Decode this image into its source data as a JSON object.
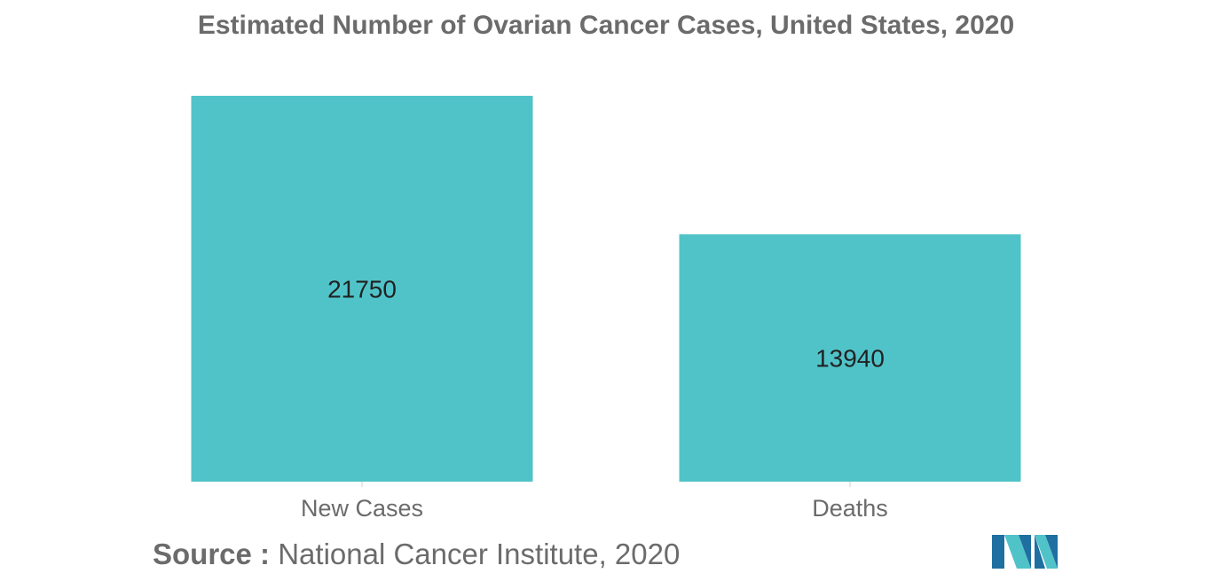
{
  "chart_data": {
    "type": "bar",
    "title": "Estimated Number of Ovarian Cancer Cases, United States, 2020",
    "categories": [
      "New Cases",
      "Deaths"
    ],
    "values": [
      21750,
      13940
    ],
    "data_labels": [
      "21750",
      "13940"
    ],
    "xlabel": "",
    "ylabel": "",
    "ylim": [
      0,
      21750
    ],
    "grid": false,
    "legend": "none",
    "bar_color": "#50c3c9"
  },
  "source": {
    "label": "Source :",
    "text": "National Cancer Institute, 2020"
  },
  "colors": {
    "bar": "#50c3c9",
    "text": "#6b6b6b",
    "logo_dark": "#1f6fa0",
    "logo_light": "#50c3c9"
  }
}
